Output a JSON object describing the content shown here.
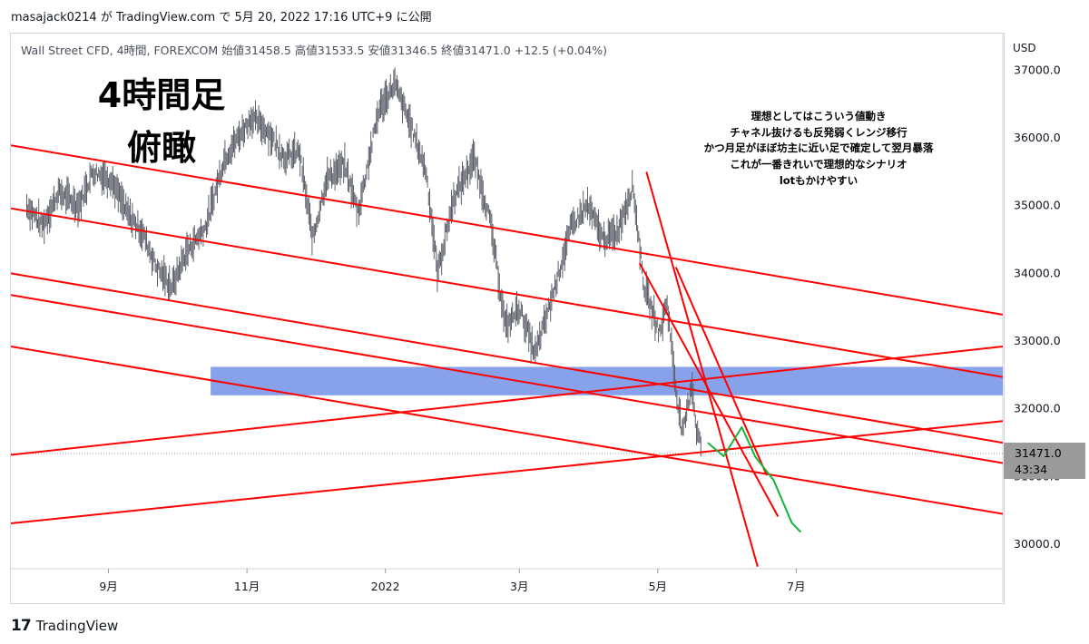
{
  "header": {
    "text": "masajack0214 が TradingView.com で 5月 20, 2022 17:16 UTC+9 に公開"
  },
  "legend": {
    "text": "Wall Street CFD, 4時間, FOREXCOM  始値31458.5  高値31533.5  安値31346.5  終値31471.0  +12.5 (+0.04%)"
  },
  "footer": {
    "logo": "17",
    "text": "TradingView"
  },
  "annotations": {
    "big_title": [
      "4時間足",
      "俯瞰"
    ],
    "note": [
      "理想としてはこういう値動き",
      "チャネル抜けるも反発弱くレンジ移行",
      "かつ月足がほぼ坊主に近い足で確定して翌月暴落",
      "これが一番きれいで理想的なシナリオ",
      "lotもかけやすい"
    ]
  },
  "colors": {
    "trendline": "#ff0000",
    "zone": "#6a89e6",
    "candles": "#5d606b",
    "path": "#18b43a"
  },
  "chart_data": {
    "type": "line",
    "title": "Wall Street CFD, 4時間, FOREXCOM",
    "currency_label": "USD",
    "ylim": [
      29640,
      37540
    ],
    "yticks": [
      30000,
      31000,
      32000,
      33000,
      34000,
      35000,
      36000,
      37000
    ],
    "ytick_labels": [
      "30000.0",
      "31000.0",
      "32000.0",
      "33000.0",
      "34000.0",
      "35000.0",
      "36000.0",
      "37000.0"
    ],
    "xticks": [
      "9月",
      "11月",
      "2022",
      "3月",
      "5月",
      "7月"
    ],
    "last_price": {
      "value": 31471.0,
      "label": "31471.0",
      "countdown": "43:34"
    },
    "price_series": [
      {
        "date": "2021-07-27",
        "y": 35000
      },
      {
        "date": "2021-08-03",
        "y": 34700
      },
      {
        "date": "2021-08-10",
        "y": 35200
      },
      {
        "date": "2021-08-19",
        "y": 35000
      },
      {
        "date": "2021-08-25",
        "y": 35500
      },
      {
        "date": "2021-09-02",
        "y": 35400
      },
      {
        "date": "2021-09-09",
        "y": 34900
      },
      {
        "date": "2021-09-16",
        "y": 34600
      },
      {
        "date": "2021-09-22",
        "y": 34100
      },
      {
        "date": "2021-09-29",
        "y": 33800
      },
      {
        "date": "2021-10-05",
        "y": 34300
      },
      {
        "date": "2021-10-14",
        "y": 34700
      },
      {
        "date": "2021-10-22",
        "y": 35700
      },
      {
        "date": "2021-11-03",
        "y": 36300
      },
      {
        "date": "2021-11-10",
        "y": 36100
      },
      {
        "date": "2021-11-18",
        "y": 35700
      },
      {
        "date": "2021-11-24",
        "y": 35800
      },
      {
        "date": "2021-11-30",
        "y": 34500
      },
      {
        "date": "2021-12-06",
        "y": 35400
      },
      {
        "date": "2021-12-14",
        "y": 35600
      },
      {
        "date": "2021-12-20",
        "y": 34900
      },
      {
        "date": "2021-12-29",
        "y": 36400
      },
      {
        "date": "2022-01-05",
        "y": 36800
      },
      {
        "date": "2022-01-12",
        "y": 36200
      },
      {
        "date": "2022-01-19",
        "y": 35500
      },
      {
        "date": "2022-01-24",
        "y": 34000
      },
      {
        "date": "2022-01-31",
        "y": 35100
      },
      {
        "date": "2022-02-09",
        "y": 35700
      },
      {
        "date": "2022-02-16",
        "y": 34800
      },
      {
        "date": "2022-02-23",
        "y": 33200
      },
      {
        "date": "2022-03-01",
        "y": 33500
      },
      {
        "date": "2022-03-08",
        "y": 32800
      },
      {
        "date": "2022-03-15",
        "y": 33600
      },
      {
        "date": "2022-03-24",
        "y": 34700
      },
      {
        "date": "2022-03-31",
        "y": 35000
      },
      {
        "date": "2022-04-07",
        "y": 34500
      },
      {
        "date": "2022-04-13",
        "y": 34600
      },
      {
        "date": "2022-04-20",
        "y": 35300
      },
      {
        "date": "2022-04-25",
        "y": 33800
      },
      {
        "date": "2022-05-02",
        "y": 33100
      },
      {
        "date": "2022-05-05",
        "y": 33600
      },
      {
        "date": "2022-05-09",
        "y": 32300
      },
      {
        "date": "2022-05-12",
        "y": 31600
      },
      {
        "date": "2022-05-16",
        "y": 32400
      },
      {
        "date": "2022-05-18",
        "y": 31700
      },
      {
        "date": "2022-05-20",
        "y": 31471
      }
    ],
    "trend_lines": [
      {
        "p1": {
          "date": "2021-07-20",
          "y": 35890
        },
        "p2": {
          "date": "2022-09-30",
          "y": 33390
        }
      },
      {
        "p1": {
          "date": "2021-07-20",
          "y": 34960
        },
        "p2": {
          "date": "2022-09-30",
          "y": 32470
        }
      },
      {
        "p1": {
          "date": "2021-07-20",
          "y": 34000
        },
        "p2": {
          "date": "2022-09-30",
          "y": 31500
        }
      },
      {
        "p1": {
          "date": "2021-07-20",
          "y": 33680
        },
        "p2": {
          "date": "2022-09-30",
          "y": 31200
        }
      },
      {
        "p1": {
          "date": "2021-07-20",
          "y": 32920
        },
        "p2": {
          "date": "2022-09-30",
          "y": 30450
        }
      },
      {
        "p1": {
          "date": "2021-07-20",
          "y": 31320
        },
        "p2": {
          "date": "2022-09-30",
          "y": 32920
        }
      },
      {
        "p1": {
          "date": "2021-07-20",
          "y": 30310
        },
        "p2": {
          "date": "2022-09-30",
          "y": 31820
        }
      },
      {
        "p1": {
          "date": "2022-04-26",
          "y": 35500
        },
        "p2": {
          "date": "2022-06-14",
          "y": 29670
        }
      },
      {
        "p1": {
          "date": "2022-04-23",
          "y": 34150
        },
        "p2": {
          "date": "2022-06-23",
          "y": 30410
        }
      },
      {
        "p1": {
          "date": "2022-05-09",
          "y": 34090
        },
        "p2": {
          "date": "2022-06-18",
          "y": 31020
        }
      }
    ],
    "zone": {
      "y_low": 32200,
      "y_high": 32620,
      "start": "2021-10-16",
      "end": "2022-09-30"
    },
    "projected_path": [
      {
        "date": "2022-05-23",
        "y": 31500
      },
      {
        "date": "2022-05-30",
        "y": 31300
      },
      {
        "date": "2022-06-07",
        "y": 31730
      },
      {
        "date": "2022-06-13",
        "y": 31290
      },
      {
        "date": "2022-06-21",
        "y": 30950
      },
      {
        "date": "2022-06-29",
        "y": 30320
      },
      {
        "date": "2022-07-03",
        "y": 30180
      }
    ]
  }
}
